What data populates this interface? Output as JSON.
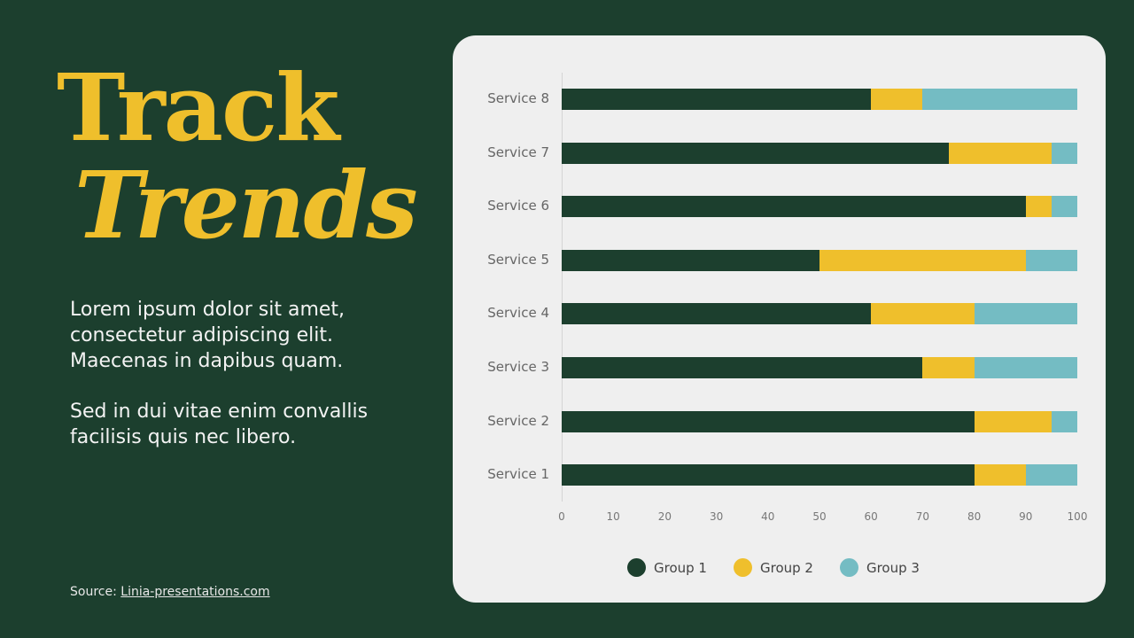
{
  "title": {
    "line1": "Track",
    "line2": "Trends"
  },
  "body": {
    "paragraph1": "Lorem ipsum dolor sit amet, consectetur adipiscing elit. Maecenas in dapibus quam.",
    "paragraph2": "Sed in dui vitae enim convallis facilisis quis nec libero."
  },
  "source": {
    "label": "Source:",
    "link_text": "Linia-presentations.com"
  },
  "colors": {
    "background": "#1c3f2e",
    "accent": "#efbf2c",
    "card": "#efefef",
    "group1": "#1c3f2e",
    "group2": "#efbf2c",
    "group3": "#74bcc3"
  },
  "chart_data": {
    "type": "bar",
    "orientation": "horizontal",
    "stacked": true,
    "title": "",
    "xlabel": "",
    "ylabel": "",
    "xlim": [
      0,
      100
    ],
    "x_ticks": [
      "0",
      "10",
      "20",
      "30",
      "40",
      "50",
      "60",
      "70",
      "80",
      "90",
      "100"
    ],
    "categories": [
      "Service 8",
      "Service 7",
      "Service 6",
      "Service 5",
      "Service 4",
      "Service 3",
      "Service 2",
      "Service 1"
    ],
    "series": [
      {
        "name": "Group 1",
        "color": "#1c3f2e",
        "values": [
          60,
          75,
          90,
          50,
          60,
          70,
          80,
          80
        ]
      },
      {
        "name": "Group 2",
        "color": "#efbf2c",
        "values": [
          10,
          20,
          5,
          40,
          20,
          10,
          15,
          10
        ]
      },
      {
        "name": "Group 3",
        "color": "#74bcc3",
        "values": [
          30,
          5,
          5,
          10,
          20,
          20,
          5,
          10
        ]
      }
    ],
    "legend": {
      "position": "bottom",
      "entries": [
        "Group 1",
        "Group 2",
        "Group 3"
      ]
    },
    "grid": false
  }
}
